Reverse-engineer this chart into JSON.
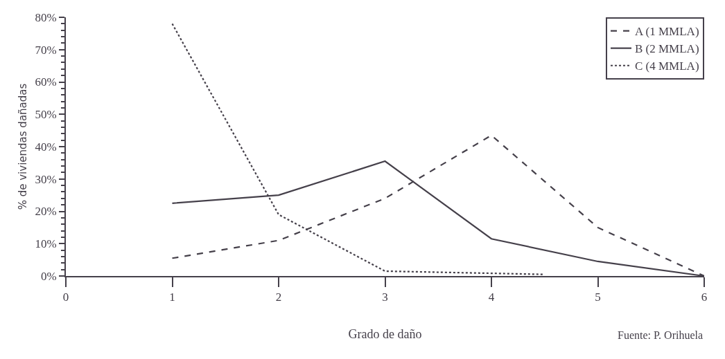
{
  "chart_data": {
    "type": "line",
    "xlabel": "Grado de daño",
    "ylabel": "% de viviendas dañadas",
    "annotations": [
      "Fuente: P. Orihuela"
    ],
    "series": [
      {
        "name": "A (1 MMLA)",
        "color": "#45404a",
        "line_style": "dashed",
        "x": [
          1,
          2,
          3,
          4,
          5,
          6
        ],
        "values": [
          5.5,
          11,
          24,
          43.5,
          15,
          0
        ]
      },
      {
        "name": "B (2 MMLA)",
        "color": "#45404a",
        "line_style": "solid",
        "x": [
          1,
          2,
          3,
          4,
          5,
          6
        ],
        "values": [
          22.5,
          25,
          35.5,
          11.5,
          4.5,
          0
        ]
      },
      {
        "name": "C (4 MMLA)",
        "color": "#45404a",
        "line_style": "dotted",
        "x": [
          1,
          2,
          3,
          4.5
        ],
        "values": [
          78,
          19,
          1.5,
          0.5
        ]
      }
    ],
    "xlim": [
      0,
      6
    ],
    "xticks": [
      0,
      1,
      2,
      3,
      4,
      5,
      6
    ],
    "ylim": [
      0,
      80
    ],
    "yticks": [
      {
        "value": 0,
        "label": "0%"
      },
      {
        "value": 10,
        "label": "10%"
      },
      {
        "value": 20,
        "label": "20%"
      },
      {
        "value": 30,
        "label": "30%"
      },
      {
        "value": 40,
        "label": "40%"
      },
      {
        "value": 50,
        "label": "50%"
      },
      {
        "value": 60,
        "label": "60%"
      },
      {
        "value": 70,
        "label": "70%"
      },
      {
        "value": 80,
        "label": "80%"
      }
    ],
    "legend": "top right",
    "marker": "none"
  }
}
